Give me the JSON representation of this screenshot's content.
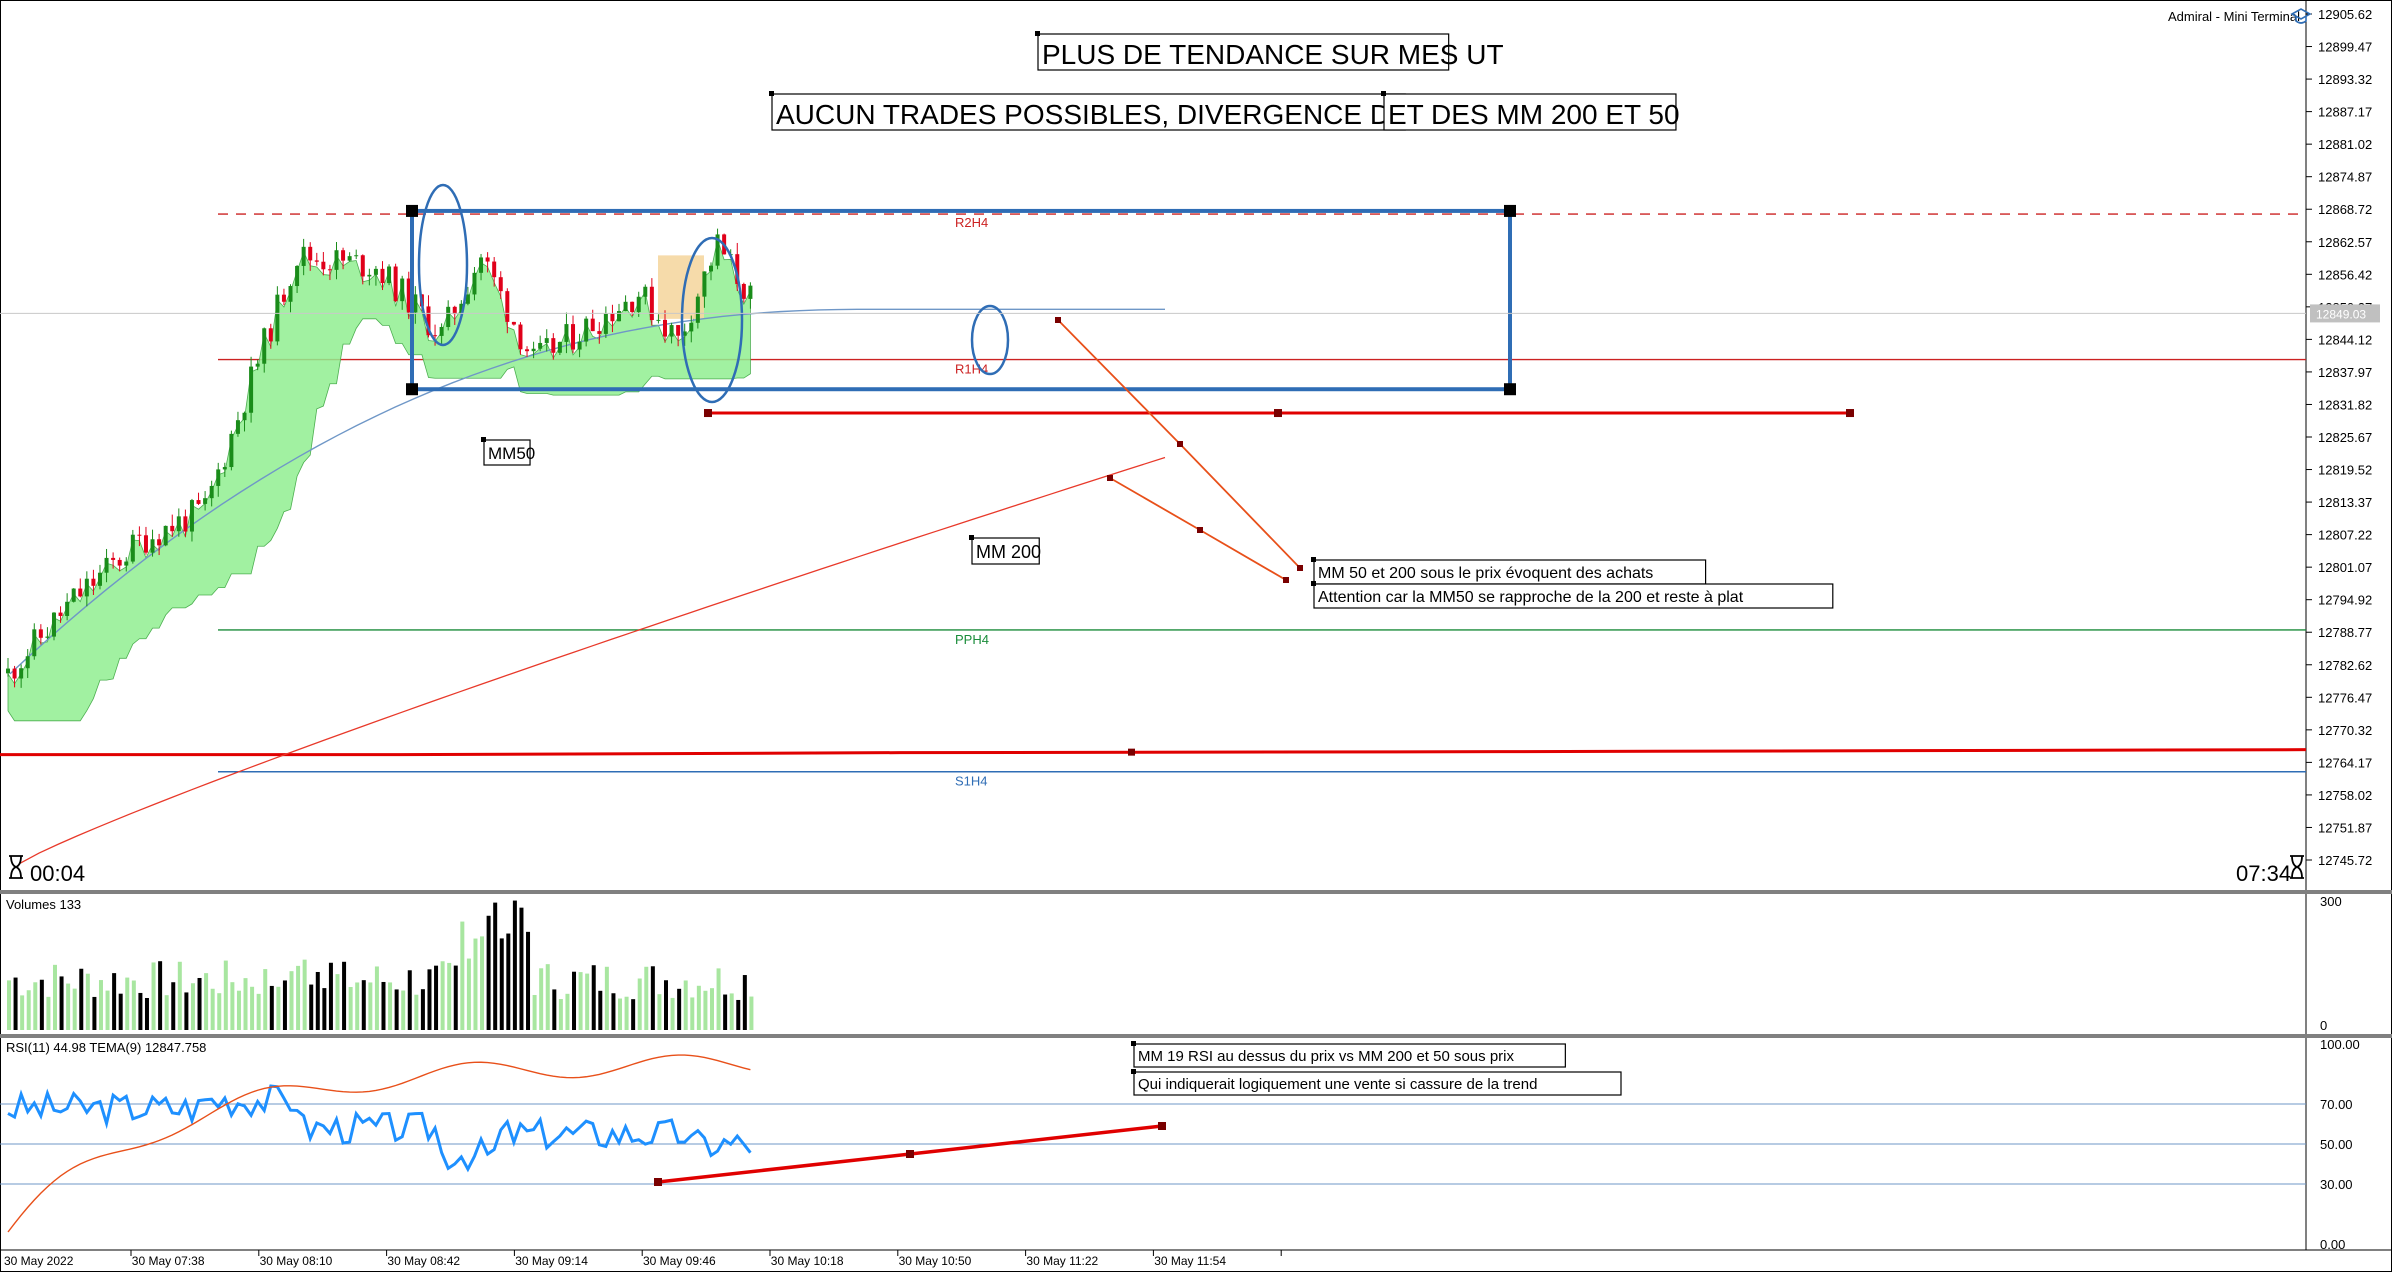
{
  "terminal": {
    "broker_label": "Admiral - Mini Terminal",
    "timer_left": "00:04",
    "timer_right": "07:34",
    "current_price_tag": "12849.03",
    "icon": "graduation-cap-icon"
  },
  "annotations": {
    "title_1": "PLUS DE TENDANCE SUR MES UT",
    "title_2": "AUCUN TRADES POSSIBLES, DIVERGENCE DES RSI",
    "title_3": "ET DES MM 200 ET 50",
    "mm50_label": "MM50",
    "mm200_label": "MM 200",
    "note_1": "MM 50 et 200 sous le prix évoquent des achats",
    "note_2": "Attention car la MM50 se rapproche de la 200 et reste à plat",
    "rsi_note_1": "MM 19 RSI au dessus du prix vs MM 200 et 50 sous prix",
    "rsi_note_2": "Qui indiquerait logiquement une vente si cassure de la trend"
  },
  "colors": {
    "bull_candle": "#1a8c1a",
    "bear_candle": "#e0001a",
    "cloud_fill": "#90ee90",
    "mm50": "#6f97c7",
    "mm200": "#e8392a",
    "rectangle": "#2f6db5",
    "pivot_r": "#cc2222",
    "pivot_pp": "#1a8c3a",
    "pivot_s": "#2f6db5",
    "rsi": "#1e90ff",
    "tema": "#e8501a",
    "vol_up": "#a8e6a0",
    "vol_down": "#000000"
  },
  "chart_data": [
    {
      "type": "candlestick",
      "panel": "price",
      "y_ticks": [
        "12905.62",
        "12899.47",
        "12893.32",
        "12887.17",
        "12881.02",
        "12874.87",
        "12868.72",
        "12862.57",
        "12856.42",
        "12850.27",
        "12844.12",
        "12837.97",
        "12831.82",
        "12825.67",
        "12819.52",
        "12813.37",
        "12807.22",
        "12801.07",
        "12794.92",
        "12788.77",
        "12782.62",
        "12776.47",
        "12770.32",
        "12764.17",
        "12758.02",
        "12751.87",
        "12745.72"
      ],
      "ylim": [
        12744.0,
        12907.0
      ],
      "x_ticks": [
        "30 May 2022",
        "30 May 07:38",
        "30 May 08:10",
        "30 May 08:42",
        "30 May 09:14",
        "30 May 09:46",
        "30 May 10:18",
        "30 May 10:50",
        "30 May 11:22",
        "30 May 11:54"
      ],
      "levels": [
        {
          "name": "R2H4",
          "value": 12867.8,
          "style": "dashed"
        },
        {
          "name": "R1H4",
          "value": 12840.3,
          "style": "solid"
        },
        {
          "name": "PPH4",
          "value": 12789.2,
          "style": "solid"
        },
        {
          "name": "S1H4",
          "value": 12762.4,
          "style": "solid"
        }
      ],
      "range_box": {
        "top": 12868.4,
        "bottom": 12834.7
      },
      "support_line": 12830.2,
      "horizontal_red": 12766.2,
      "series": [
        {
          "name": "MM50",
          "from": 12780.9,
          "to": 12849.8
        },
        {
          "name": "MM 200",
          "from": 12745.1,
          "to": 12821.8
        }
      ]
    },
    {
      "type": "bar",
      "panel": "volume",
      "title": "Volumes 133",
      "y_ticks": [
        "300",
        "0"
      ],
      "ylim": [
        0,
        300
      ]
    },
    {
      "type": "line",
      "panel": "rsi",
      "title": "RSI(11) 44.98 TEMA(9) 12847.758",
      "y_ticks": [
        "100.00",
        "70.00",
        "50.00",
        "30.00",
        "0.00"
      ],
      "ylim": [
        0,
        100
      ],
      "series": [
        {
          "name": "RSI(11)",
          "last": 44.98
        },
        {
          "name": "TEMA(9)",
          "last": 12847.758
        }
      ],
      "trendline": {
        "from": 31.0,
        "to": 59.0
      }
    }
  ]
}
